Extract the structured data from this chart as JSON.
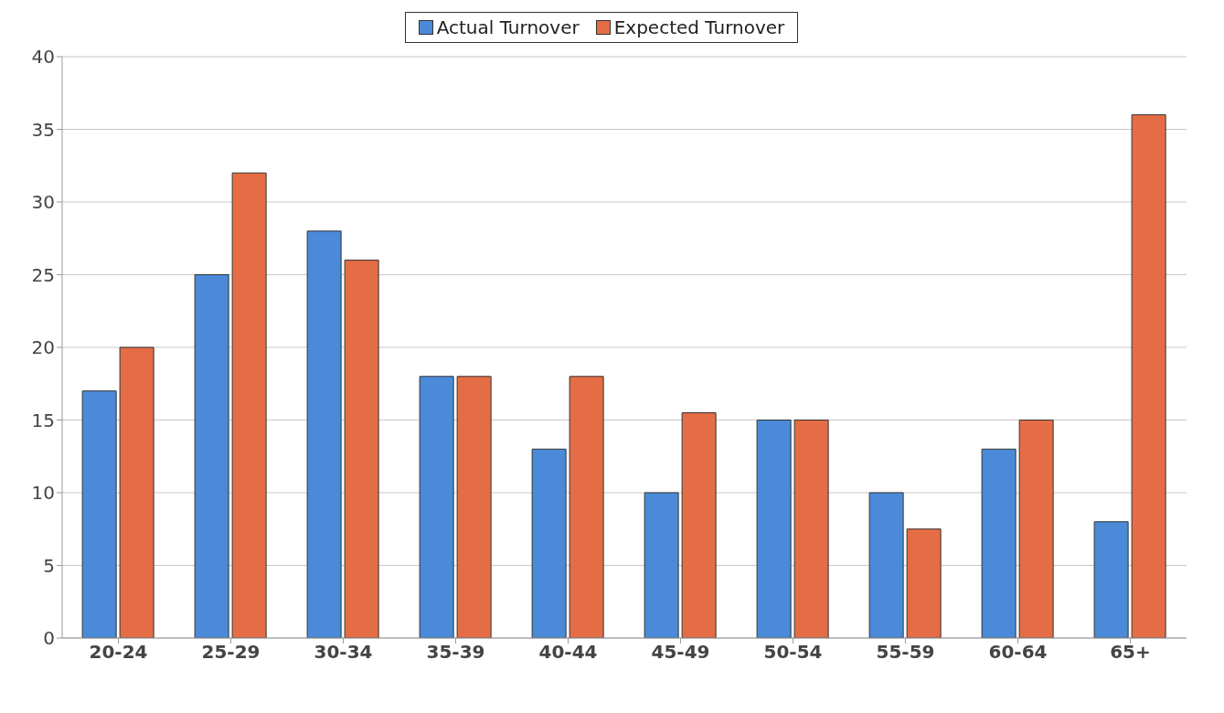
{
  "chart_data": {
    "type": "bar",
    "categories": [
      "20-24",
      "25-29",
      "30-34",
      "35-39",
      "40-44",
      "45-49",
      "50-54",
      "55-59",
      "60-64",
      "65+"
    ],
    "series": [
      {
        "name": "Actual Turnover",
        "color": "#4a8ad8",
        "values": [
          17,
          25,
          28,
          18,
          13,
          10,
          15,
          10,
          13,
          8
        ]
      },
      {
        "name": "Expected Turnover",
        "color": "#e56d45",
        "values": [
          20,
          32,
          26,
          18,
          18,
          15.5,
          15,
          7.5,
          15,
          36
        ]
      }
    ],
    "ylim": [
      0,
      40
    ],
    "yticks": [
      0,
      5,
      10,
      15,
      20,
      25,
      30,
      35,
      40
    ],
    "grid": "y",
    "legend": "top"
  }
}
